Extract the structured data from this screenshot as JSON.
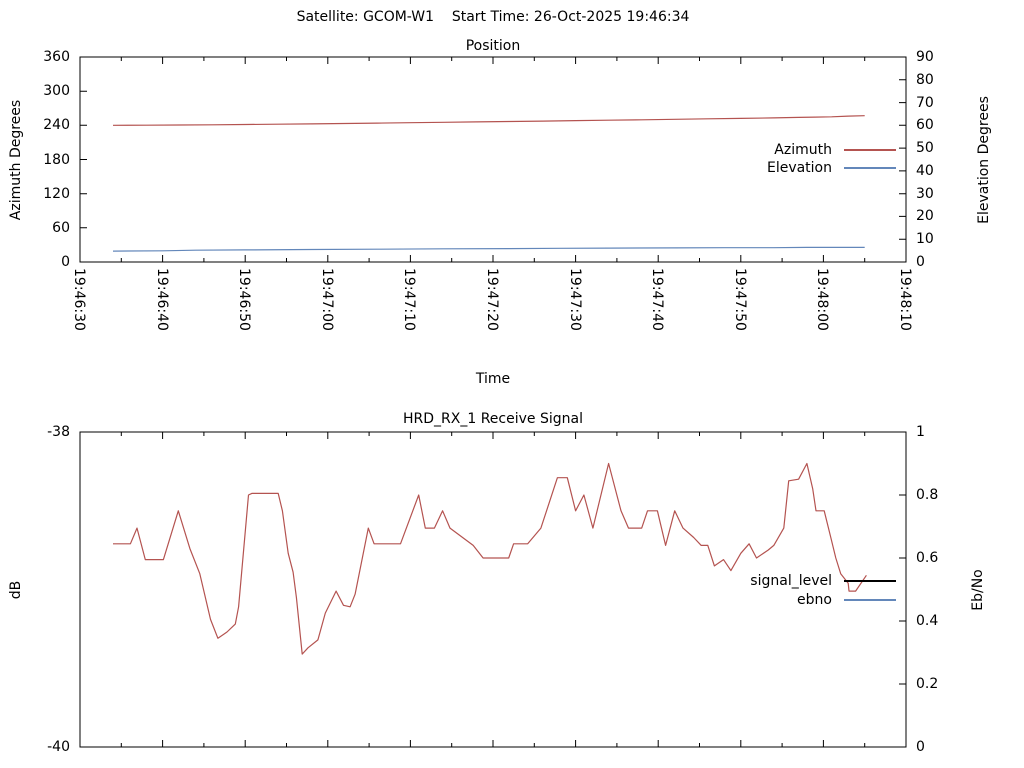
{
  "header": {
    "title": "Satellite: GCOM-W1    Start Time: 26-Oct-2025 19:46:34"
  },
  "colors": {
    "series_red": "#b45350",
    "series_blue": "#6387ba",
    "signal_legend_black": "#000000",
    "axis": "#000000",
    "background": "#ffffff"
  },
  "chart_data": [
    {
      "type": "line",
      "title": "Position",
      "xlabel": "Time",
      "ylabel_left": "Azimuth Degrees",
      "ylabel_right": "Elevation Degrees",
      "x_tick_labels": [
        "19:46:30",
        "19:46:40",
        "19:46:50",
        "19:47:00",
        "19:47:10",
        "19:47:20",
        "19:47:30",
        "19:47:40",
        "19:47:50",
        "19:48:00",
        "19:48:10"
      ],
      "x_range_seconds": [
        0,
        100
      ],
      "x_major_tick_seconds": 10,
      "x_minor_tick_seconds": 5,
      "y_left_range": [
        0,
        360
      ],
      "y_left_ticks": [
        0,
        60,
        120,
        180,
        240,
        300,
        360
      ],
      "y_right_range": [
        0,
        90
      ],
      "y_right_ticks": [
        0,
        10,
        20,
        30,
        40,
        50,
        60,
        70,
        80,
        90
      ],
      "grid": false,
      "legend_position": "inside-right",
      "legend": [
        {
          "label": "Azimuth",
          "color": "#b45350"
        },
        {
          "label": "Elevation",
          "color": "#6387ba"
        }
      ],
      "series": [
        {
          "name": "Azimuth",
          "axis": "left",
          "color": "#b45350",
          "points": [
            [
              4,
              240.0
            ],
            [
              8,
              240.2
            ],
            [
              12,
              240.5
            ],
            [
              16,
              241.0
            ],
            [
              20,
              241.5
            ],
            [
              24,
              242.0
            ],
            [
              28,
              242.6
            ],
            [
              32,
              243.2
            ],
            [
              36,
              243.9
            ],
            [
              40,
              244.6
            ],
            [
              44,
              245.3
            ],
            [
              48,
              246.0
            ],
            [
              52,
              246.8
            ],
            [
              56,
              247.5
            ],
            [
              60,
              248.3
            ],
            [
              64,
              249.0
            ],
            [
              68,
              249.8
            ],
            [
              72,
              250.6
            ],
            [
              76,
              251.4
            ],
            [
              80,
              252.2
            ],
            [
              84,
              253.1
            ],
            [
              87,
              254.0
            ],
            [
              89,
              254.5
            ],
            [
              91,
              255.0
            ],
            [
              93,
              256.3
            ],
            [
              95,
              257.0
            ]
          ]
        },
        {
          "name": "Elevation",
          "axis": "right",
          "color": "#6387ba",
          "points": [
            [
              4,
              4.8
            ],
            [
              10,
              4.9
            ],
            [
              14,
              5.2
            ],
            [
              20,
              5.3
            ],
            [
              28,
              5.5
            ],
            [
              36,
              5.6
            ],
            [
              44,
              5.8
            ],
            [
              52,
              5.9
            ],
            [
              58,
              6.0
            ],
            [
              64,
              6.1
            ],
            [
              72,
              6.2
            ],
            [
              78,
              6.3
            ],
            [
              84,
              6.3
            ],
            [
              88,
              6.4
            ],
            [
              95,
              6.4
            ]
          ]
        }
      ]
    },
    {
      "type": "line",
      "title": "HRD_RX_1 Receive Signal",
      "xlabel": "",
      "ylabel_left": "dB",
      "ylabel_right": "Eb/No",
      "x_tick_labels": [],
      "x_range_seconds": [
        0,
        100
      ],
      "x_major_tick_seconds": 10,
      "x_minor_tick_seconds": 5,
      "y_left_range": [
        -40,
        -38
      ],
      "y_left_ticks": [
        -38,
        -40
      ],
      "y_right_range": [
        0,
        1
      ],
      "y_right_ticks": [
        0,
        0.2,
        0.4,
        0.6,
        0.8,
        1
      ],
      "grid": false,
      "legend_position": "inside-right",
      "legend": [
        {
          "label": "signal_level",
          "color": "#000000"
        },
        {
          "label": "ebno",
          "color": "#6387ba"
        }
      ],
      "series": [
        {
          "name": "signal_level",
          "axis": "left",
          "color": "#b45350",
          "points": [
            [
              4.0,
              -38.71
            ],
            [
              6.1,
              -38.71
            ],
            [
              6.9,
              -38.61
            ],
            [
              7.9,
              -38.81
            ],
            [
              10.1,
              -38.81
            ],
            [
              11.9,
              -38.5
            ],
            [
              13.3,
              -38.74
            ],
            [
              14.5,
              -38.9
            ],
            [
              15.8,
              -39.19
            ],
            [
              16.7,
              -39.31
            ],
            [
              17.8,
              -39.27
            ],
            [
              18.8,
              -39.22
            ],
            [
              19.2,
              -39.11
            ],
            [
              20.4,
              -38.4
            ],
            [
              20.8,
              -38.39
            ],
            [
              24.0,
              -38.39
            ],
            [
              24.5,
              -38.5
            ],
            [
              25.2,
              -38.77
            ],
            [
              25.8,
              -38.89
            ],
            [
              26.2,
              -39.05
            ],
            [
              26.9,
              -39.41
            ],
            [
              27.6,
              -39.37
            ],
            [
              28.8,
              -39.32
            ],
            [
              29.7,
              -39.15
            ],
            [
              31.0,
              -39.01
            ],
            [
              31.9,
              -39.1
            ],
            [
              32.7,
              -39.11
            ],
            [
              33.3,
              -39.03
            ],
            [
              34.9,
              -38.61
            ],
            [
              35.6,
              -38.71
            ],
            [
              38.8,
              -38.71
            ],
            [
              41.0,
              -38.4
            ],
            [
              41.8,
              -38.61
            ],
            [
              42.9,
              -38.61
            ],
            [
              43.9,
              -38.5
            ],
            [
              44.8,
              -38.61
            ],
            [
              47.6,
              -38.72
            ],
            [
              48.8,
              -38.8
            ],
            [
              51.9,
              -38.8
            ],
            [
              52.5,
              -38.71
            ],
            [
              54.2,
              -38.71
            ],
            [
              55.8,
              -38.61
            ],
            [
              57.8,
              -38.29
            ],
            [
              59.0,
              -38.29
            ],
            [
              60.0,
              -38.5
            ],
            [
              61.0,
              -38.4
            ],
            [
              62.1,
              -38.61
            ],
            [
              64.0,
              -38.2
            ],
            [
              65.5,
              -38.5
            ],
            [
              66.4,
              -38.61
            ],
            [
              68.0,
              -38.61
            ],
            [
              68.7,
              -38.5
            ],
            [
              69.9,
              -38.5
            ],
            [
              70.9,
              -38.72
            ],
            [
              72.0,
              -38.5
            ],
            [
              73.0,
              -38.61
            ],
            [
              74.3,
              -38.67
            ],
            [
              75.2,
              -38.72
            ],
            [
              76.0,
              -38.72
            ],
            [
              76.8,
              -38.85
            ],
            [
              77.9,
              -38.81
            ],
            [
              78.8,
              -38.88
            ],
            [
              80.0,
              -38.77
            ],
            [
              81.0,
              -38.71
            ],
            [
              81.9,
              -38.8
            ],
            [
              83.3,
              -38.75
            ],
            [
              84.0,
              -38.72
            ],
            [
              85.2,
              -38.61
            ],
            [
              85.8,
              -38.31
            ],
            [
              87.0,
              -38.3
            ],
            [
              88.0,
              -38.2
            ],
            [
              88.7,
              -38.36
            ],
            [
              89.1,
              -38.5
            ],
            [
              90.1,
              -38.5
            ],
            [
              90.9,
              -38.67
            ],
            [
              91.5,
              -38.8
            ],
            [
              92.1,
              -38.9
            ],
            [
              93.0,
              -38.96
            ],
            [
              93.1,
              -39.01
            ],
            [
              93.9,
              -39.01
            ],
            [
              95.2,
              -38.91
            ]
          ]
        },
        {
          "name": "ebno",
          "axis": "right",
          "color": "#6387ba",
          "points": []
        }
      ]
    }
  ]
}
